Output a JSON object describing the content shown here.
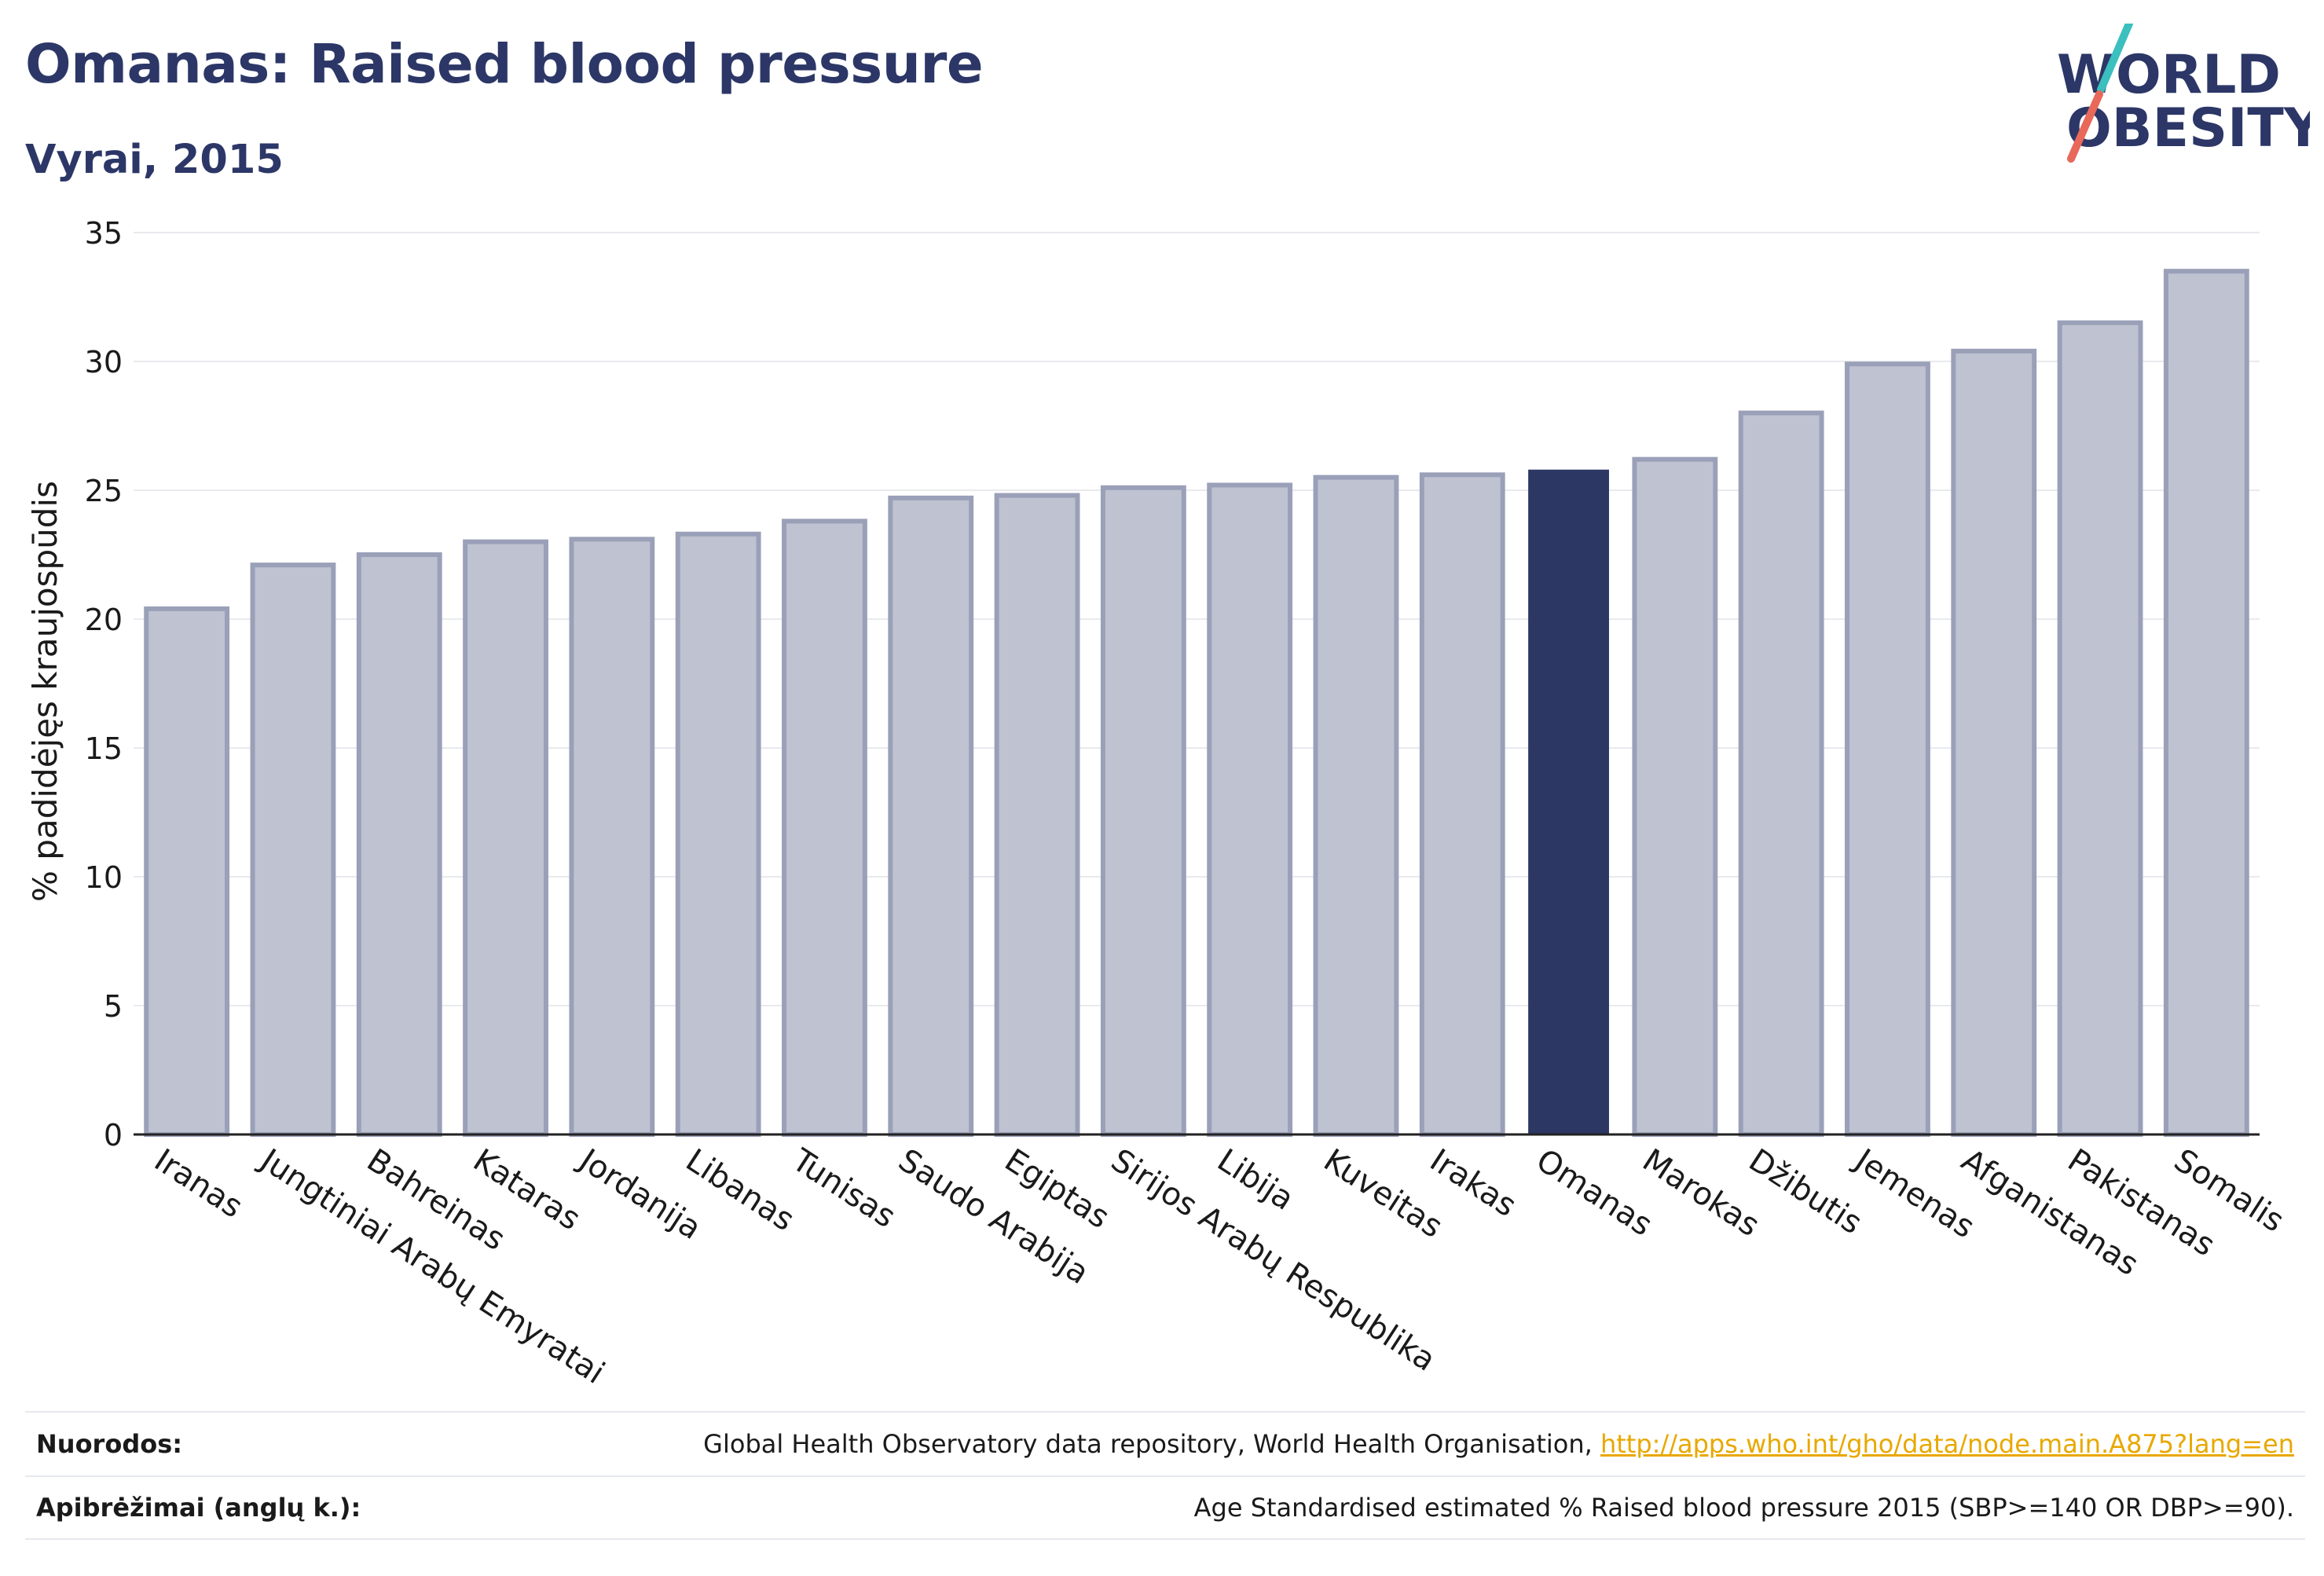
{
  "header": {
    "title": "Omanas: Raised blood pressure",
    "subtitle": "Vyrai, 2015"
  },
  "logo": {
    "line1": "WORLD",
    "line2": "OBESITY",
    "colors": {
      "text": "#2c3767",
      "slash_top": "#3bbfbf",
      "slash_bottom": "#e8685a"
    }
  },
  "chart_data": {
    "type": "bar",
    "ylabel": "% padidėjęs kraujospūdis",
    "xlabel": "",
    "ylim": [
      0,
      35
    ],
    "yticks": [
      0,
      5,
      10,
      15,
      20,
      25,
      30,
      35
    ],
    "grid": true,
    "highlight": "Omanas",
    "colors": {
      "bar": "#bfc2d0",
      "bar_edge": "#9aa0b8",
      "highlight": "#2c3763",
      "grid": "#e9eaee"
    },
    "categories": [
      "Iranas",
      "Jungtiniai Arabų Emyratai",
      "Bahreinas",
      "Kataras",
      "Jordanija",
      "Libanas",
      "Tunisas",
      "Saudo Arabija",
      "Egiptas",
      "Sirijos Arabų Respublika",
      "Libija",
      "Kuveitas",
      "Irakas",
      "Omanas",
      "Marokas",
      "Džibutis",
      "Jemenas",
      "Afganistanas",
      "Pakistanas",
      "Somalis"
    ],
    "values": [
      20.4,
      22.1,
      22.5,
      23.0,
      23.1,
      23.3,
      23.8,
      24.7,
      24.8,
      25.1,
      25.2,
      25.5,
      25.6,
      25.8,
      26.2,
      28.0,
      29.9,
      30.4,
      31.5,
      33.5
    ]
  },
  "footer": {
    "sources_label": "Nuorodos:",
    "sources_text": "Global Health Observatory data repository, World Health Organisation, ",
    "sources_link": "http://apps.who.int/gho/data/node.main.A875?lang=en",
    "definitions_label": "Apibrėžimai (anglų k.):",
    "definitions_text": "Age Standardised estimated % Raised blood pressure 2015 (SBP>=140 OR DBP>=90)."
  }
}
